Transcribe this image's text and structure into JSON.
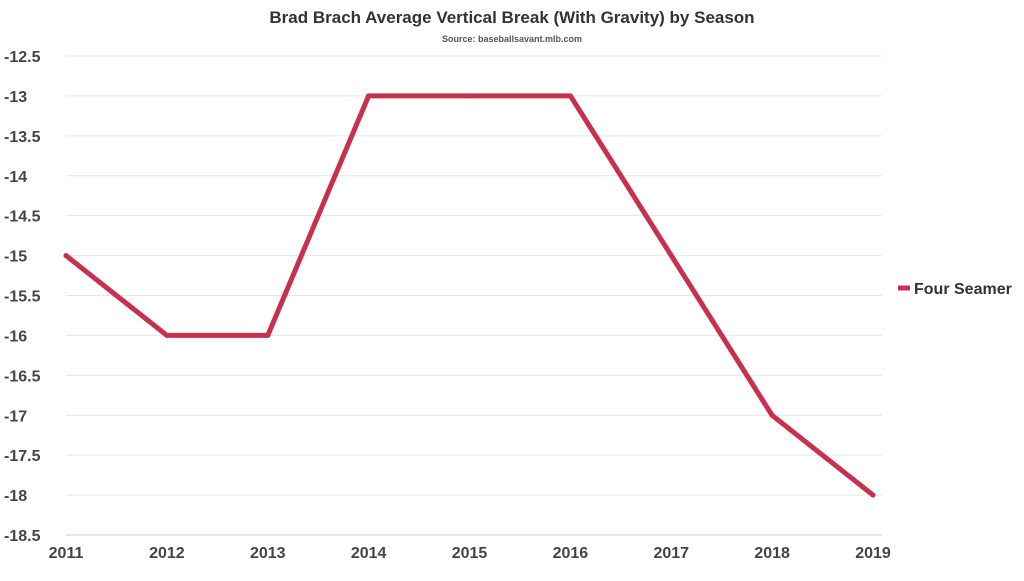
{
  "chart_data": {
    "type": "line",
    "title": "Brad Brach Average Vertical Break (With Gravity) by Season",
    "subtitle": "Source: baseballsavant.mlb.com",
    "xlabel": "",
    "ylabel": "",
    "categories": [
      "2011",
      "2012",
      "2013",
      "2014",
      "2015",
      "2016",
      "2017",
      "2018",
      "2019"
    ],
    "series": [
      {
        "name": "Four Seamer",
        "color": "#c8304d",
        "values": [
          -15,
          -16,
          -16,
          -13,
          -13,
          -13,
          -15,
          -17,
          -18
        ]
      }
    ],
    "ylim": [
      -18.5,
      -12.5
    ],
    "yticks": [
      -12.5,
      -13,
      -13.5,
      -14,
      -14.5,
      -15,
      -15.5,
      -16,
      -16.5,
      -17,
      -17.5,
      -18,
      -18.5
    ],
    "ytick_labels": [
      "-12.5",
      "-13",
      "-13.5",
      "-14",
      "-14.5",
      "-15",
      "-15.5",
      "-16",
      "-16.5",
      "-17",
      "-17.5",
      "-18",
      "-18.5"
    ],
    "grid": true,
    "legend_position": "right"
  }
}
